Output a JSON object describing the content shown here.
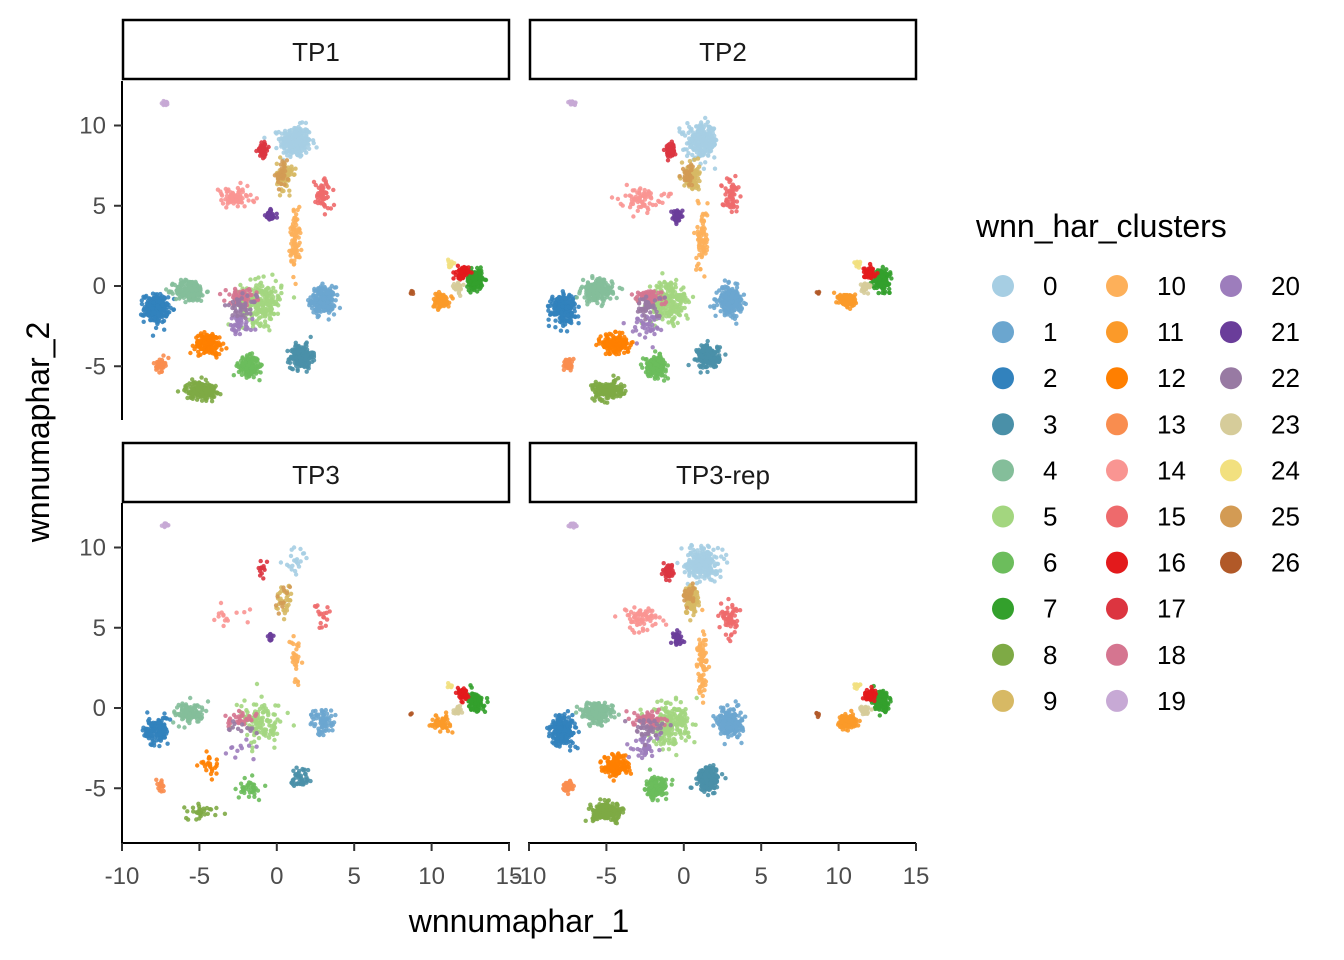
{
  "chart_data": {
    "type": "scatter",
    "xlabel": "wnnumaphar_1",
    "ylabel": "wnnumaphar_2",
    "xlim": [
      -10,
      15
    ],
    "ylim": [
      -8.5,
      12.3
    ],
    "x_ticks": [
      -10,
      -5,
      0,
      5,
      10,
      15
    ],
    "x_tick_labels": [
      "-10",
      "-5",
      "0",
      "5",
      "10",
      "15"
    ],
    "y_ticks": [
      -5,
      0,
      5,
      10
    ],
    "y_tick_labels": [
      "-5",
      "0",
      "5",
      "10"
    ],
    "grid": false,
    "legend": {
      "title": "wnn_har_clusters",
      "placement": "right",
      "items": [
        {
          "label": "0",
          "color": "#A6CEE3"
        },
        {
          "label": "1",
          "color": "#6BA6CF"
        },
        {
          "label": "2",
          "color": "#3282BD"
        },
        {
          "label": "3",
          "color": "#4A90A8"
        },
        {
          "label": "4",
          "color": "#84BE9A"
        },
        {
          "label": "5",
          "color": "#A3D67F"
        },
        {
          "label": "6",
          "color": "#6CBD5C"
        },
        {
          "label": "7",
          "color": "#33A02C"
        },
        {
          "label": "8",
          "color": "#7EAA45"
        },
        {
          "label": "9",
          "color": "#D7B964"
        },
        {
          "label": "10",
          "color": "#FDB05A"
        },
        {
          "label": "11",
          "color": "#FB9A29"
        },
        {
          "label": "12",
          "color": "#FF7F00"
        },
        {
          "label": "13",
          "color": "#F98D4F"
        },
        {
          "label": "14",
          "color": "#F99592"
        },
        {
          "label": "15",
          "color": "#EE6A6C"
        },
        {
          "label": "16",
          "color": "#E31A1C"
        },
        {
          "label": "17",
          "color": "#DC3540"
        },
        {
          "label": "18",
          "color": "#D57590"
        },
        {
          "label": "19",
          "color": "#C7A9D5"
        },
        {
          "label": "20",
          "color": "#9D7DBC"
        },
        {
          "label": "21",
          "color": "#6A3D9A"
        },
        {
          "label": "22",
          "color": "#987AA3"
        },
        {
          "label": "23",
          "color": "#D6CC9A"
        },
        {
          "label": "24",
          "color": "#F2E07F"
        },
        {
          "label": "25",
          "color": "#D39B54"
        },
        {
          "label": "26",
          "color": "#B15928"
        }
      ]
    },
    "panels": [
      {
        "title": "TP1",
        "scale": 1.0,
        "omit": []
      },
      {
        "title": "TP2",
        "scale": 1.0,
        "omit": []
      },
      {
        "title": "TP3",
        "scale": 0.5,
        "omit": []
      },
      {
        "title": "TP3-rep",
        "scale": 1.0,
        "omit": []
      }
    ],
    "clusters": [
      {
        "id": "0",
        "cx": 1.2,
        "cy": 9.0,
        "sx": 0.9,
        "sy": 0.9,
        "n": 260,
        "tp3": 0.15
      },
      {
        "id": "1",
        "cx": 3.0,
        "cy": -0.9,
        "sx": 0.7,
        "sy": 0.75,
        "n": 220,
        "tp3": 0.6
      },
      {
        "id": "2",
        "cx": -7.8,
        "cy": -1.4,
        "sx": 0.7,
        "sy": 0.8,
        "n": 240,
        "tp3": 1.0
      },
      {
        "id": "3",
        "cx": 1.6,
        "cy": -4.4,
        "sx": 0.65,
        "sy": 0.65,
        "n": 200,
        "tp3": 0.4
      },
      {
        "id": "4",
        "cx": -5.6,
        "cy": -0.3,
        "sx": 0.9,
        "sy": 0.6,
        "n": 200,
        "tp3": 1.0
      },
      {
        "id": "5",
        "cx": -1.0,
        "cy": -1.0,
        "sx": 1.2,
        "sy": 1.2,
        "n": 220,
        "tp3": 1.0
      },
      {
        "id": "6",
        "cx": -1.8,
        "cy": -5.0,
        "sx": 0.6,
        "sy": 0.55,
        "n": 170,
        "tp3": 0.4
      },
      {
        "id": "7",
        "cx": 12.8,
        "cy": 0.4,
        "sx": 0.45,
        "sy": 0.55,
        "n": 160,
        "tp3": 1.2
      },
      {
        "id": "8",
        "cx": -4.9,
        "cy": -6.5,
        "sx": 0.9,
        "sy": 0.5,
        "n": 180,
        "tp3": 0.3
      },
      {
        "id": "9",
        "cx": 0.5,
        "cy": 6.8,
        "sx": 0.45,
        "sy": 0.8,
        "n": 90,
        "tp3": 0.7
      },
      {
        "id": "10",
        "cx": 1.2,
        "cy": 3.0,
        "sx": 0.3,
        "sy": 1.8,
        "n": 80,
        "tp3": 0.7
      },
      {
        "id": "11",
        "cx": 10.6,
        "cy": -0.9,
        "sx": 0.5,
        "sy": 0.4,
        "n": 110,
        "tp3": 1.0
      },
      {
        "id": "12",
        "cx": -4.4,
        "cy": -3.6,
        "sx": 0.8,
        "sy": 0.6,
        "n": 150,
        "tp3": 0.3
      },
      {
        "id": "13",
        "cx": -7.5,
        "cy": -4.9,
        "sx": 0.25,
        "sy": 0.35,
        "n": 40,
        "tp3": 0.7
      },
      {
        "id": "14",
        "cx": -2.8,
        "cy": 5.5,
        "sx": 1.2,
        "sy": 0.6,
        "n": 70,
        "tp3": 0.4
      },
      {
        "id": "15",
        "cx": 3.0,
        "cy": 5.7,
        "sx": 0.5,
        "sy": 0.9,
        "n": 60,
        "tp3": 0.5
      },
      {
        "id": "16",
        "cx": 12.0,
        "cy": 0.8,
        "sx": 0.35,
        "sy": 0.35,
        "n": 60,
        "tp3": 1.2
      },
      {
        "id": "17",
        "cx": -0.9,
        "cy": 8.5,
        "sx": 0.3,
        "sy": 0.4,
        "n": 50,
        "tp3": 0.5
      },
      {
        "id": "18",
        "cx": -2.3,
        "cy": -0.7,
        "sx": 0.9,
        "sy": 0.45,
        "n": 70,
        "tp3": 0.8
      },
      {
        "id": "19",
        "cx": -7.2,
        "cy": 11.4,
        "sx": 0.2,
        "sy": 0.12,
        "n": 25,
        "tp3": 1.0
      },
      {
        "id": "20",
        "cx": -2.5,
        "cy": -2.5,
        "sx": 0.9,
        "sy": 0.7,
        "n": 40,
        "tp3": 0.5
      },
      {
        "id": "21",
        "cx": -0.4,
        "cy": 4.4,
        "sx": 0.3,
        "sy": 0.35,
        "n": 40,
        "tp3": 0.6
      },
      {
        "id": "22",
        "cx": -2.3,
        "cy": -1.3,
        "sx": 0.9,
        "sy": 0.6,
        "n": 40,
        "tp3": 0.6
      },
      {
        "id": "23",
        "cx": 11.7,
        "cy": -0.1,
        "sx": 0.3,
        "sy": 0.3,
        "n": 30,
        "tp3": 1.0
      },
      {
        "id": "24",
        "cx": 11.2,
        "cy": 1.4,
        "sx": 0.2,
        "sy": 0.2,
        "n": 12,
        "tp3": 1.0
      },
      {
        "id": "25",
        "cx": 0.3,
        "cy": 6.9,
        "sx": 0.35,
        "sy": 0.6,
        "n": 30,
        "tp3": 0.6
      },
      {
        "id": "26",
        "cx": 8.7,
        "cy": -0.4,
        "sx": 0.12,
        "sy": 0.1,
        "n": 6,
        "tp3": 1.0
      }
    ]
  }
}
